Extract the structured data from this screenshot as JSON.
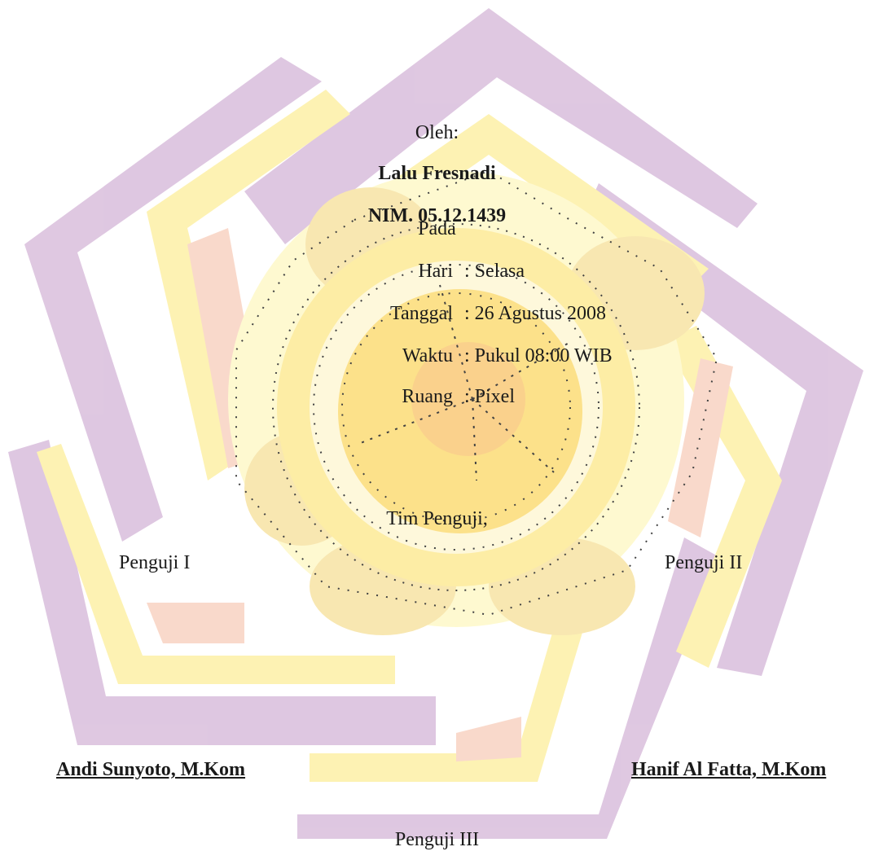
{
  "header": {
    "oleh": "Oleh:",
    "name": "Lalu Fresnadi",
    "nim": "NIM. 05.12.1439"
  },
  "schedule": {
    "pada": "Pada",
    "rows": [
      {
        "label": "Hari",
        "value": ": Selasa"
      },
      {
        "label": "Tanggal",
        "value": ": 26 Agustus 2008"
      },
      {
        "label": "Waktu",
        "value": ": Pukul 08:00 WIB"
      },
      {
        "label": "Ruang",
        "value": ": Pixel"
      }
    ]
  },
  "team": {
    "title": "Tim Penguji,",
    "penguji_1_label": "Penguji I",
    "penguji_2_label": "Penguji II",
    "penguji_1_name": "Andi Sunyoto, M.Kom",
    "penguji_2_name": "Hanif Al Fatta, M.Kom",
    "penguji_3_label": "Penguji III"
  },
  "watermark": {
    "icon": "university-logo-watermark",
    "colors": {
      "purple": "#d9bedc",
      "yellow": "#fdf0a6",
      "peach": "#f9d3c2",
      "core": "#fbd55e"
    }
  }
}
